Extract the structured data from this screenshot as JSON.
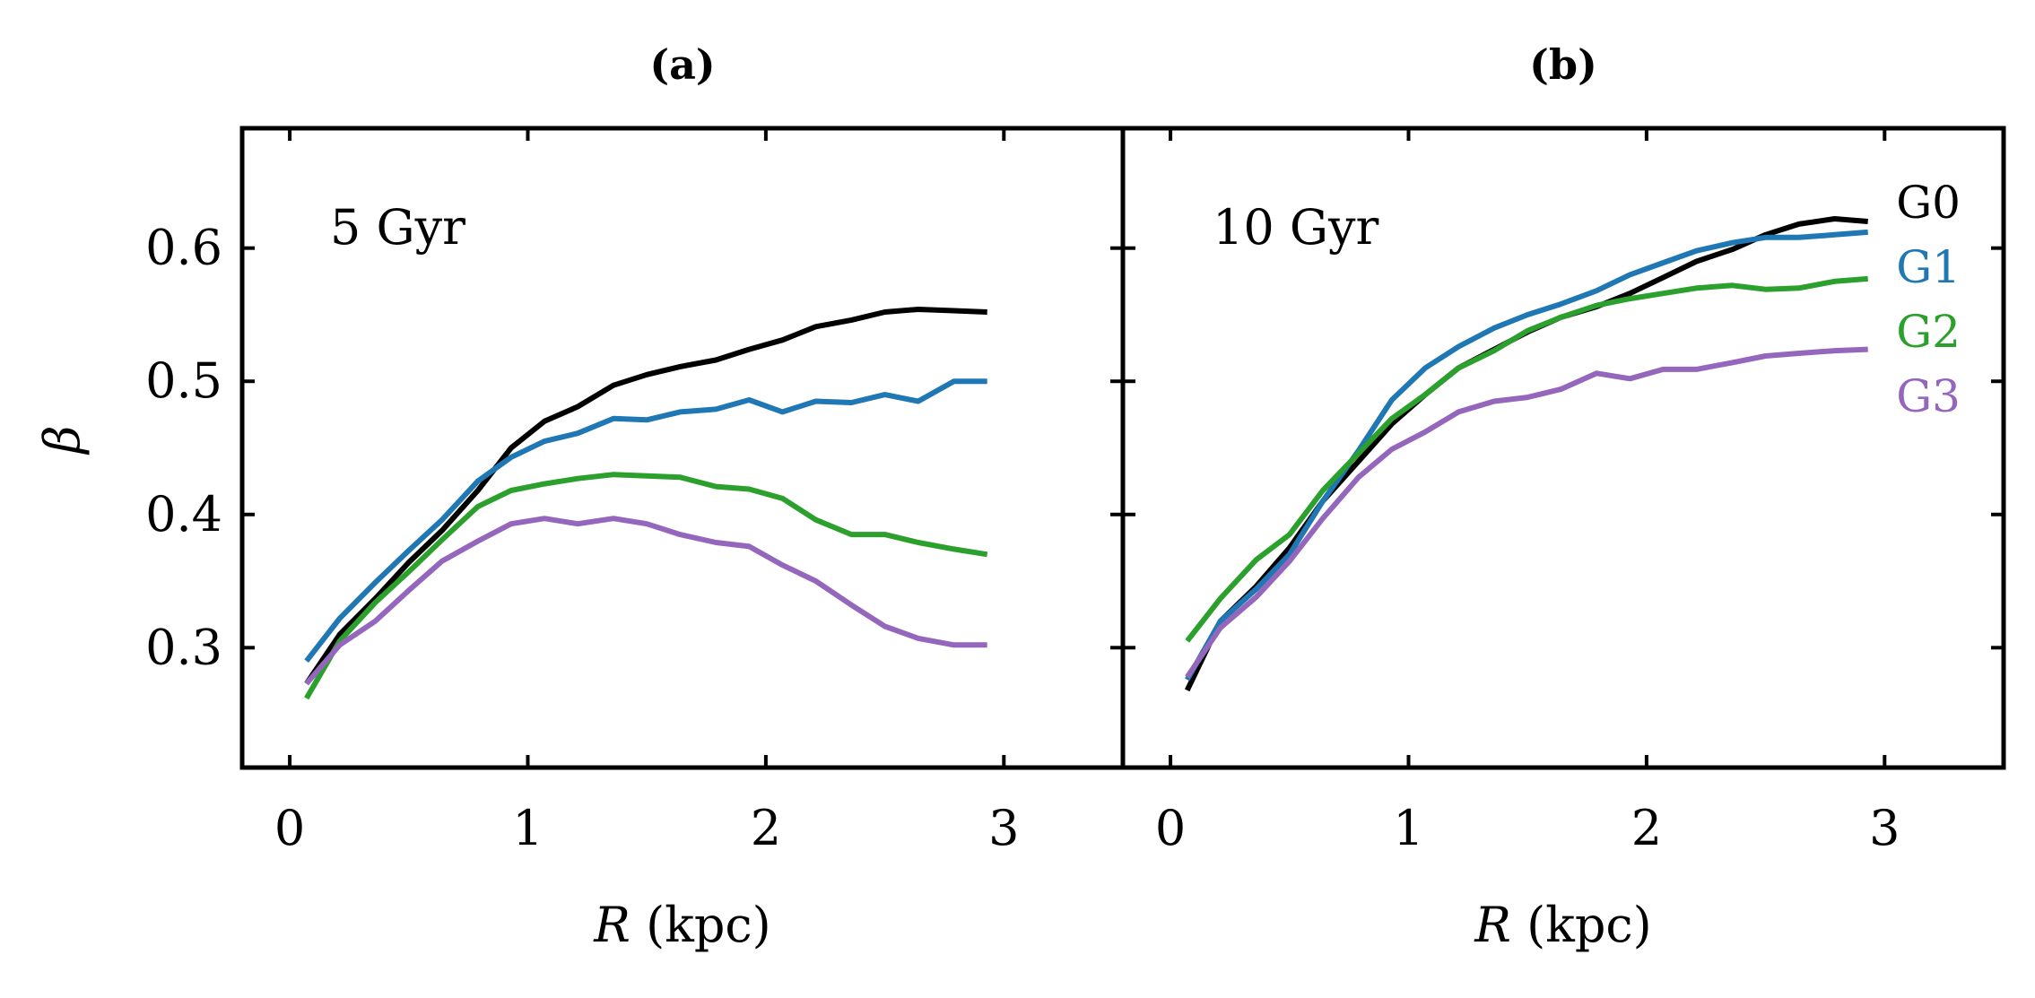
{
  "chart_data": [
    {
      "type": "line",
      "title": "(a)",
      "annotation": "5 Gyr",
      "xlabel_var": "R",
      "xlabel_unit": " (kpc)",
      "ylabel": "β",
      "xlim": [
        -0.2,
        3.5
      ],
      "ylim": [
        0.21,
        0.69
      ],
      "xticks": [
        0,
        1,
        2,
        3
      ],
      "yticks": [
        0.3,
        0.4,
        0.5,
        0.6
      ],
      "xtick_labels": [
        "0",
        "1",
        "2",
        "3"
      ],
      "ytick_labels": [
        "0.3",
        "0.4",
        "0.5",
        "0.6"
      ],
      "x": [
        0.07,
        0.21,
        0.36,
        0.5,
        0.64,
        0.79,
        0.93,
        1.07,
        1.21,
        1.36,
        1.5,
        1.64,
        1.79,
        1.93,
        2.07,
        2.21,
        2.36,
        2.5,
        2.64,
        2.79,
        2.93
      ],
      "series": [
        {
          "name": "G0",
          "color": "#000000",
          "values": [
            0.273,
            0.31,
            0.337,
            0.364,
            0.388,
            0.418,
            0.45,
            0.47,
            0.481,
            0.497,
            0.505,
            0.511,
            0.516,
            0.524,
            0.531,
            0.541,
            0.546,
            0.552,
            0.554,
            0.553,
            0.552
          ]
        },
        {
          "name": "G1",
          "color": "#1f77b4",
          "values": [
            0.29,
            0.322,
            0.349,
            0.373,
            0.396,
            0.425,
            0.443,
            0.455,
            0.461,
            0.472,
            0.471,
            0.477,
            0.479,
            0.486,
            0.477,
            0.485,
            0.484,
            0.49,
            0.485,
            0.5,
            0.5
          ]
        },
        {
          "name": "G2",
          "color": "#2ca02c",
          "values": [
            0.262,
            0.305,
            0.334,
            0.357,
            0.381,
            0.406,
            0.418,
            0.423,
            0.427,
            0.43,
            0.429,
            0.428,
            0.421,
            0.419,
            0.412,
            0.396,
            0.385,
            0.385,
            0.379,
            0.374,
            0.37
          ]
        },
        {
          "name": "G3",
          "color": "#9467bd",
          "values": [
            0.273,
            0.302,
            0.32,
            0.343,
            0.365,
            0.38,
            0.393,
            0.397,
            0.393,
            0.397,
            0.393,
            0.385,
            0.379,
            0.376,
            0.362,
            0.35,
            0.332,
            0.316,
            0.307,
            0.302,
            0.302
          ]
        }
      ]
    },
    {
      "type": "line",
      "title": "(b)",
      "annotation": "10 Gyr",
      "xlabel_var": "R",
      "xlabel_unit": " (kpc)",
      "xlim": [
        -0.2,
        3.5
      ],
      "ylim": [
        0.21,
        0.69
      ],
      "xticks": [
        0,
        1,
        2,
        3
      ],
      "yticks": [
        0.3,
        0.4,
        0.5,
        0.6
      ],
      "xtick_labels": [
        "0",
        "1",
        "2",
        "3"
      ],
      "legend": [
        "G0",
        "G1",
        "G2",
        "G3"
      ],
      "legend_position": "top-right",
      "x": [
        0.07,
        0.21,
        0.36,
        0.5,
        0.64,
        0.79,
        0.93,
        1.07,
        1.21,
        1.36,
        1.5,
        1.64,
        1.79,
        1.93,
        2.07,
        2.21,
        2.36,
        2.5,
        2.64,
        2.79,
        2.93
      ],
      "series": [
        {
          "name": "G0",
          "color": "#000000",
          "values": [
            0.268,
            0.32,
            0.346,
            0.375,
            0.41,
            0.44,
            0.468,
            0.49,
            0.51,
            0.524,
            0.537,
            0.548,
            0.556,
            0.566,
            0.578,
            0.59,
            0.599,
            0.61,
            0.618,
            0.622,
            0.62
          ]
        },
        {
          "name": "G1",
          "color": "#1f77b4",
          "values": [
            0.276,
            0.32,
            0.344,
            0.37,
            0.41,
            0.448,
            0.486,
            0.51,
            0.526,
            0.54,
            0.55,
            0.558,
            0.568,
            0.58,
            0.589,
            0.598,
            0.604,
            0.608,
            0.608,
            0.61,
            0.612
          ]
        },
        {
          "name": "G2",
          "color": "#2ca02c",
          "values": [
            0.305,
            0.337,
            0.366,
            0.385,
            0.418,
            0.446,
            0.472,
            0.49,
            0.51,
            0.523,
            0.538,
            0.548,
            0.557,
            0.562,
            0.566,
            0.57,
            0.572,
            0.569,
            0.57,
            0.575,
            0.577
          ]
        },
        {
          "name": "G3",
          "color": "#9467bd",
          "values": [
            0.278,
            0.315,
            0.338,
            0.365,
            0.397,
            0.428,
            0.449,
            0.462,
            0.477,
            0.485,
            0.488,
            0.494,
            0.506,
            0.502,
            0.509,
            0.509,
            0.514,
            0.519,
            0.521,
            0.523,
            0.524
          ]
        }
      ]
    }
  ]
}
